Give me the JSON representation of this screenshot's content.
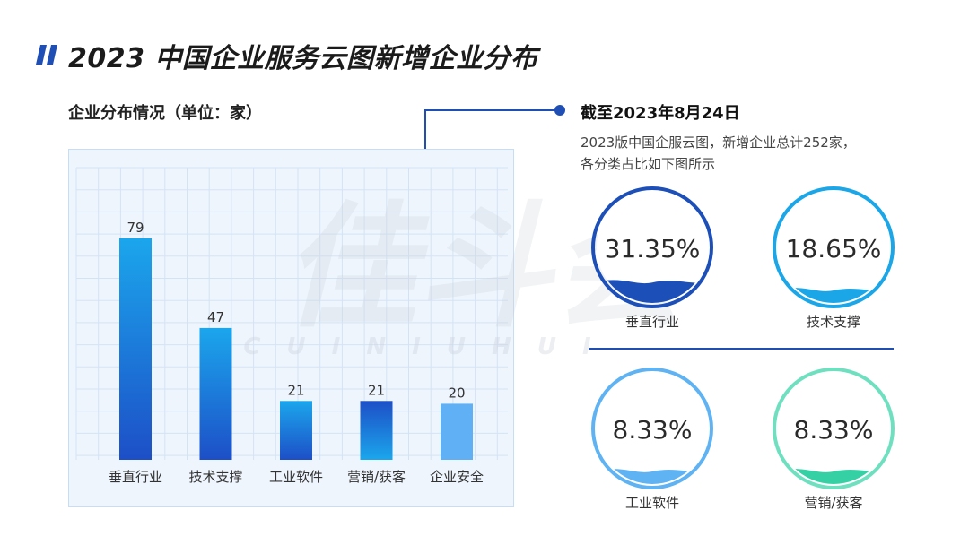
{
  "title": "2023 中国企业服务云图新增企业分布",
  "chart_subtitle": "企业分布情况（单位：家）",
  "watermark": {
    "main": "佳斗会",
    "sub": "C U I N I U H U I"
  },
  "info": {
    "date": "截至2023年8月24日",
    "desc_line1": "2023版中国企服云图，新增企业总计252家，",
    "desc_line2": "各分类占比如下图所示"
  },
  "chart_data": {
    "type": "bar",
    "categories": [
      "垂直行业",
      "技术支撑",
      "工业软件",
      "营销/获客",
      "企业安全"
    ],
    "values": [
      79,
      47,
      21,
      21,
      20
    ],
    "ylim": [
      0,
      100
    ],
    "grid": true,
    "title": "企业分布情况（单位：家）",
    "xlabel": "",
    "ylabel": ""
  },
  "percent_circles": [
    {
      "label": "垂直行业",
      "percent": "31.35%",
      "fill_fraction": 0.3135,
      "color": "#1d4fb8",
      "ring": "#1d4fb8"
    },
    {
      "label": "技术支撑",
      "percent": "18.65%",
      "fill_fraction": 0.1865,
      "color": "#1ba6e8",
      "ring": "#1ba6e8"
    },
    {
      "label": "工业软件",
      "percent": "8.33%",
      "fill_fraction": 0.0833,
      "color": "#5fb3f2",
      "ring": "#5fb3f2"
    },
    {
      "label": "营销/获客",
      "percent": "8.33%",
      "fill_fraction": 0.0833,
      "color": "#35d1a4",
      "ring": "#6fe0bf"
    }
  ],
  "colors": {
    "accent": "#1f4fb5",
    "bar_gradients": [
      [
        "#1ba6ec",
        "#1d4fc7"
      ],
      [
        "#1ba6ec",
        "#1d4fc7"
      ],
      [
        "#1ba6ec",
        "#1d4fc7"
      ],
      [
        "#1d4fc7",
        "#1ba6ec"
      ],
      [
        "#5fb0f5",
        "#5fb0f5"
      ]
    ]
  }
}
